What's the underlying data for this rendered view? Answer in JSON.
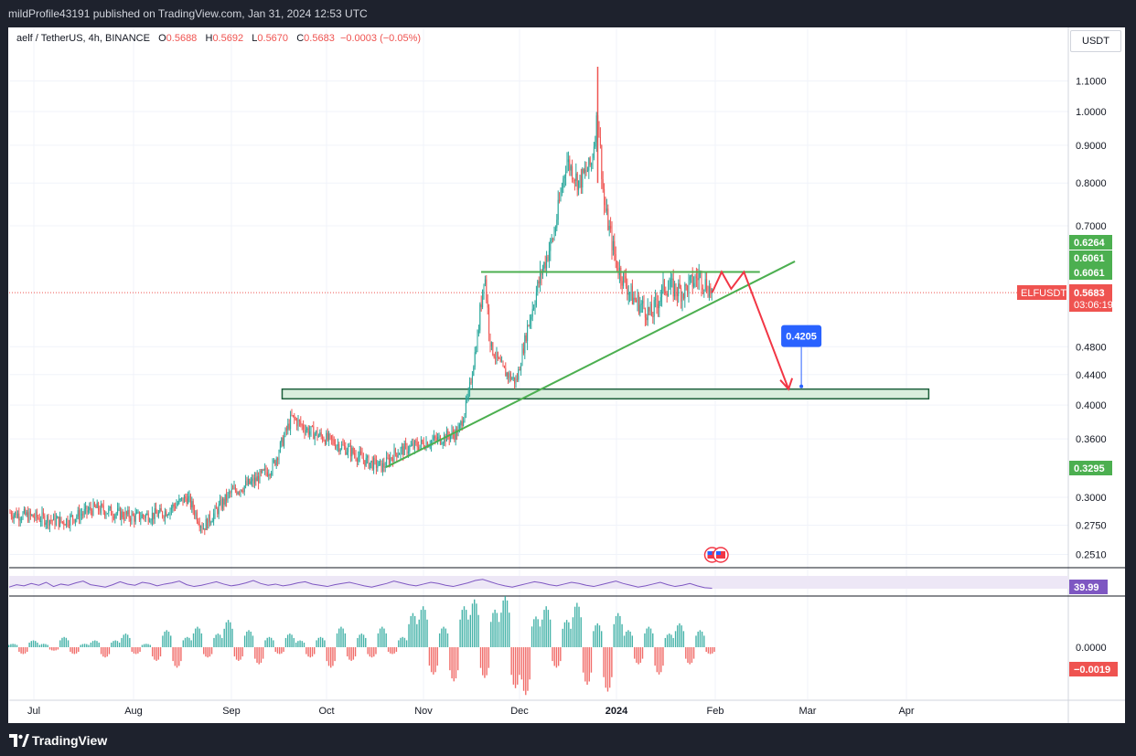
{
  "header": {
    "published": "mildProfile43191 published on TradingView.com, Jan 31, 2024 12:53 UTC"
  },
  "legend": {
    "symbol": "aelf / TetherUS, 4h, BINANCE",
    "o_label": "O",
    "o": "0.5688",
    "h_label": "H",
    "h": "0.5692",
    "l_label": "L",
    "l": "0.5670",
    "c_label": "C",
    "c": "0.5683",
    "change": "−0.0003 (−0.05%)"
  },
  "currency": "USDT",
  "footer": {
    "brand": "TradingView"
  },
  "colors": {
    "up": "#26a69a",
    "down": "#ef5350",
    "trendline": "#4caf50",
    "zone_fill": "#d9eedd",
    "zone_border": "#1b5e3a",
    "rsi": "#7e57c2",
    "target_badge": "#2962ff"
  },
  "chart_data": [
    {
      "type": "candlestick",
      "panel": "price",
      "symbol": "ELFUSDT",
      "interval": "4h",
      "y_scale": "log",
      "ylim": [
        0.24,
        1.2
      ],
      "y_ticks": [
        "1.1000",
        "1.0000",
        "0.9000",
        "0.8000",
        "0.7000",
        "0.4800",
        "0.4400",
        "0.4000",
        "0.3600",
        "0.3000",
        "0.2750",
        "0.2510"
      ],
      "x_ticks": [
        "Jul",
        "Aug",
        "Sep",
        "Oct",
        "Nov",
        "Dec",
        "2024",
        "Feb",
        "Mar",
        "Apr"
      ],
      "x_dates": [
        "2023-07-01",
        "2023-08-01",
        "2023-09-01",
        "2023-10-01",
        "2023-11-01",
        "2023-12-01",
        "2024-01-01",
        "2024-02-01",
        "2024-03-01",
        "2024-04-01"
      ],
      "approx_close_path": [
        [
          "2023-06-25",
          0.285
        ],
        [
          "2023-07-10",
          0.278
        ],
        [
          "2023-07-20",
          0.29
        ],
        [
          "2023-08-01",
          0.282
        ],
        [
          "2023-08-10",
          0.285
        ],
        [
          "2023-08-18",
          0.3
        ],
        [
          "2023-08-23",
          0.273
        ],
        [
          "2023-09-01",
          0.305
        ],
        [
          "2023-09-08",
          0.315
        ],
        [
          "2023-09-14",
          0.33
        ],
        [
          "2023-09-20",
          0.385
        ],
        [
          "2023-09-25",
          0.37
        ],
        [
          "2023-10-01",
          0.36
        ],
        [
          "2023-10-08",
          0.348
        ],
        [
          "2023-10-14",
          0.335
        ],
        [
          "2023-10-19",
          0.33
        ],
        [
          "2023-10-23",
          0.345
        ],
        [
          "2023-11-01",
          0.355
        ],
        [
          "2023-11-06",
          0.36
        ],
        [
          "2023-11-12",
          0.368
        ],
        [
          "2023-11-15",
          0.41
        ],
        [
          "2023-11-18",
          0.5
        ],
        [
          "2023-11-20",
          0.61
        ],
        [
          "2023-11-22",
          0.48
        ],
        [
          "2023-11-26",
          0.445
        ],
        [
          "2023-11-30",
          0.43
        ],
        [
          "2023-12-04",
          0.52
        ],
        [
          "2023-12-08",
          0.605
        ],
        [
          "2023-12-12",
          0.68
        ],
        [
          "2023-12-16",
          0.86
        ],
        [
          "2023-12-20",
          0.8
        ],
        [
          "2023-12-24",
          0.85
        ],
        [
          "2023-12-26",
          1.0
        ],
        [
          "2023-12-28",
          0.75
        ],
        [
          "2024-01-01",
          0.62
        ],
        [
          "2024-01-06",
          0.56
        ],
        [
          "2024-01-12",
          0.53
        ],
        [
          "2024-01-16",
          0.58
        ],
        [
          "2024-01-22",
          0.57
        ],
        [
          "2024-01-27",
          0.6
        ],
        [
          "2024-01-31",
          0.5683
        ]
      ],
      "markers": {
        "high": 1.15,
        "last_price": "0.5683",
        "countdown": "03:06:19",
        "label": "ELFUSDT"
      },
      "price_labels": [
        {
          "value": "0.6264",
          "color": "#4caf50"
        },
        {
          "value": "0.6061",
          "color": "#4caf50"
        },
        {
          "value": "0.6061",
          "color": "#4caf50"
        },
        {
          "value": "0.3295",
          "color": "#4caf50"
        }
      ],
      "drawings": {
        "resistance": {
          "price": 0.6061,
          "from": "2023-11-19",
          "to": "2024-02-15"
        },
        "support_zone": {
          "top": 0.4205,
          "bottom": 0.408,
          "from": "2023-09-17",
          "to": "2024-04-08"
        },
        "trendline": {
          "from": [
            "2023-10-20",
            0.3295
          ],
          "to": [
            "2024-02-26",
            0.6264
          ]
        },
        "projection": [
          [
            "2024-01-31",
            0.568
          ],
          [
            "2024-02-03",
            0.6061
          ],
          [
            "2024-02-06",
            0.575
          ],
          [
            "2024-02-10",
            0.6061
          ],
          [
            "2024-02-24",
            0.4205
          ]
        ],
        "target": "0.4205"
      }
    },
    {
      "type": "line",
      "panel": "RSI",
      "series": [
        {
          "values": [
            42,
            46,
            44,
            48,
            45,
            50,
            43,
            47,
            45,
            49,
            52,
            46,
            44,
            42,
            46,
            51,
            47,
            45,
            50,
            48,
            44,
            47,
            49,
            52,
            46,
            43,
            45,
            48,
            51,
            47,
            44,
            46,
            49,
            53,
            48,
            45,
            47,
            44,
            46,
            49,
            51,
            47,
            45,
            43,
            46,
            48,
            50,
            47,
            44,
            42,
            45,
            48,
            52,
            49,
            46,
            44,
            47,
            50,
            48,
            45,
            43,
            46,
            49,
            53,
            55,
            51,
            47,
            44,
            42,
            45,
            48,
            51,
            49,
            46,
            44,
            47,
            50,
            48,
            45,
            43,
            46,
            49,
            52,
            48,
            45,
            42,
            44,
            47,
            50,
            46,
            43,
            45,
            48,
            44,
            41,
            40
          ]
        }
      ],
      "last_value": "39.99"
    },
    {
      "type": "bar",
      "panel": "oscillator",
      "zero_label": "0.0000",
      "last_value": "−0.0019",
      "series": [
        {
          "values": [
            0.001,
            -0.002,
            0.002,
            0.001,
            -0.001,
            0.003,
            -0.002,
            0.001,
            0.002,
            -0.003,
            0.002,
            0.004,
            -0.002,
            0.001,
            -0.004,
            0.005,
            -0.006,
            0.003,
            0.006,
            -0.003,
            0.004,
            0.008,
            -0.004,
            0.005,
            -0.005,
            0.003,
            -0.002,
            0.004,
            0.002,
            -0.003,
            0.003,
            -0.006,
            0.006,
            -0.004,
            0.004,
            -0.003,
            0.006,
            -0.002,
            0.003,
            0.01,
            0.012,
            -0.008,
            0.006,
            -0.01,
            0.012,
            0.014,
            -0.009,
            0.011,
            0.015,
            -0.012,
            -0.014,
            0.009,
            0.012,
            -0.006,
            0.008,
            0.013,
            -0.011,
            0.007,
            -0.013,
            0.01,
            0.005,
            -0.005,
            0.006,
            -0.008,
            0.004,
            0.007,
            -0.005,
            0.005,
            -0.002
          ]
        }
      ]
    }
  ]
}
